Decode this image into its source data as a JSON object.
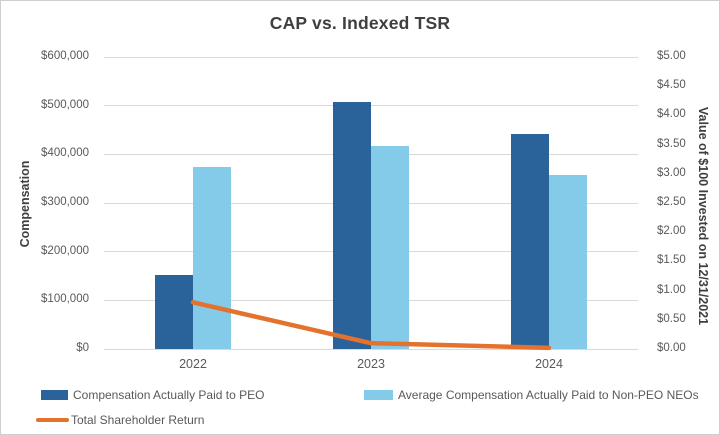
{
  "title": "CAP vs. Indexed TSR",
  "chart_data": {
    "type": "bar",
    "subtype": "bar-line-combo",
    "title": "CAP vs. Indexed TSR",
    "categories": [
      "2022",
      "2023",
      "2024"
    ],
    "series": [
      {
        "name": "Compensation Actually Paid to PEO",
        "type": "bar",
        "axis": "left",
        "color": "#2a6399",
        "values": [
          152000,
          507000,
          441000
        ]
      },
      {
        "name": "Average Compensation Actually Paid to Non-PEO NEOs",
        "type": "bar",
        "axis": "left",
        "color": "#84cbe9",
        "values": [
          373000,
          418000,
          357000
        ]
      },
      {
        "name": "Total Shareholder Return",
        "type": "line",
        "axis": "right",
        "color": "#e4722e",
        "values": [
          0.8,
          0.1,
          0.02
        ]
      }
    ],
    "left_axis": {
      "title": "Compensation",
      "min": 0,
      "max": 600000,
      "step": 100000,
      "tick_labels": [
        "$0",
        "$100,000",
        "$200,000",
        "$300,000",
        "$400,000",
        "$500,000",
        "$600,000"
      ]
    },
    "right_axis": {
      "title": "Value of $100 Invested on 12/31/2021",
      "min": 0,
      "max": 5,
      "step": 0.5,
      "tick_labels": [
        "$0.00",
        "$0.50",
        "$1.00",
        "$1.50",
        "$2.00",
        "$2.50",
        "$3.00",
        "$3.50",
        "$4.00",
        "$4.50",
        "$5.00"
      ]
    },
    "grid": true,
    "gridline_color": "#d9d9d9",
    "legend_position": "bottom",
    "text_color": "#595959",
    "title_color": "#3f3f3f"
  }
}
